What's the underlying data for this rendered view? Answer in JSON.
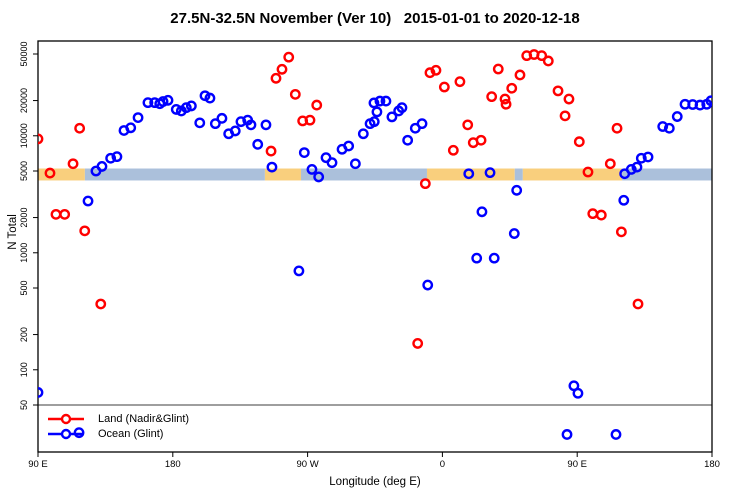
{
  "title": "27.5N-32.5N November (Ver 10)   2015-01-01 to 2020-12-18",
  "chart_data": {
    "type": "scatter",
    "title": "27.5N-32.5N November (Ver 10)   2015-01-01 to 2020-12-18",
    "xlabel": "Longitude (deg E)",
    "ylabel": "N Total",
    "x_axis": {
      "note": "longitude wraps eastward from 90E across dateline; continuous coords 90..540",
      "range": [
        90,
        540
      ],
      "ticks": [
        {
          "lon": 90,
          "label": "90 E"
        },
        {
          "lon": 180,
          "label": "180"
        },
        {
          "lon": 270,
          "label": "90 W"
        },
        {
          "lon": 360,
          "label": "0"
        },
        {
          "lon": 450,
          "label": "90 E"
        },
        {
          "lon": 540,
          "label": "180"
        }
      ]
    },
    "y_axis": {
      "scale": "log10",
      "range": [
        20,
        65000
      ],
      "ticks": [
        50,
        100,
        200,
        500,
        1000,
        2000,
        5000,
        10000,
        20000,
        50000
      ]
    },
    "grid": "off",
    "legend_position": "bottom-left",
    "reference_line_y": 50,
    "reference_line_color": "#7f7f7f",
    "surface_band": {
      "value_range": [
        4150,
        5250
      ],
      "land_color": "#f9cf7d",
      "ocean_color": "#abc0db",
      "segments": [
        {
          "from": 90,
          "to": 121.3,
          "surface": "land"
        },
        {
          "from": 121.3,
          "to": 241.5,
          "surface": "ocean"
        },
        {
          "from": 241.5,
          "to": 265.6,
          "surface": "land"
        },
        {
          "from": 265.6,
          "to": 349.7,
          "surface": "ocean"
        },
        {
          "from": 349.7,
          "to": 408.3,
          "surface": "land"
        },
        {
          "from": 408.3,
          "to": 413.7,
          "surface": "ocean"
        },
        {
          "from": 413.7,
          "to": 480.0,
          "surface": "land"
        },
        {
          "from": 480.0,
          "to": 540.0,
          "surface": "ocean"
        }
      ]
    },
    "series": [
      {
        "name": "Land (Nadir&Glint)",
        "color": "#ff0000",
        "marker": "open-circle",
        "points": [
          [
            90,
            9400
          ],
          [
            98,
            4800
          ],
          [
            102,
            2130
          ],
          [
            107.8,
            2130
          ],
          [
            113.4,
            5770
          ],
          [
            117.8,
            11600
          ],
          [
            121.2,
            1540
          ],
          [
            131.9,
            365
          ],
          [
            245.6,
            7400
          ],
          [
            248.9,
            31000
          ],
          [
            252.9,
            37000
          ],
          [
            257.4,
            47000
          ],
          [
            261.8,
            22600
          ],
          [
            266.7,
            13400
          ],
          [
            271.6,
            13600
          ],
          [
            276.1,
            18300
          ],
          [
            343.5,
            168
          ],
          [
            348.6,
            3900
          ],
          [
            351.7,
            34600
          ],
          [
            355.7,
            36300
          ],
          [
            361.3,
            26100
          ],
          [
            367.3,
            7520
          ],
          [
            371.7,
            29000
          ],
          [
            376.9,
            12400
          ],
          [
            380.6,
            8730
          ],
          [
            385.8,
            9160
          ],
          [
            392.9,
            21600
          ],
          [
            397.3,
            37200
          ],
          [
            401.8,
            20600
          ],
          [
            402.5,
            18600
          ],
          [
            406.3,
            25500
          ],
          [
            411.8,
            33100
          ],
          [
            416.3,
            48400
          ],
          [
            421.2,
            49500
          ],
          [
            426.3,
            48400
          ],
          [
            430.7,
            43600
          ],
          [
            437.2,
            24200
          ],
          [
            441.9,
            14800
          ],
          [
            444.5,
            20600
          ],
          [
            451.4,
            8900
          ],
          [
            457.2,
            4900
          ],
          [
            460.4,
            2160
          ],
          [
            466.1,
            2100
          ],
          [
            472.1,
            5770
          ],
          [
            476.6,
            11600
          ],
          [
            479.5,
            1510
          ],
          [
            490.6,
            365
          ]
        ]
      },
      {
        "name": "Ocean (Glint)",
        "color": "#0000ff",
        "marker": "open-circle",
        "points": [
          [
            90,
            64
          ],
          [
            117.4,
            29
          ],
          [
            123.4,
            2770
          ],
          [
            128.7,
            5000
          ],
          [
            132.7,
            5470
          ],
          [
            138.5,
            6430
          ],
          [
            142.7,
            6630
          ],
          [
            147.4,
            11100
          ],
          [
            151.9,
            11700
          ],
          [
            156.8,
            14300
          ],
          [
            163.4,
            19200
          ],
          [
            167.9,
            19200
          ],
          [
            171.3,
            18800
          ],
          [
            173.5,
            19600
          ],
          [
            176.8,
            20100
          ],
          [
            182.3,
            16800
          ],
          [
            185.7,
            16300
          ],
          [
            189,
            17400
          ],
          [
            192.4,
            18000
          ],
          [
            198,
            12900
          ],
          [
            201.5,
            22000
          ],
          [
            204.8,
            21000
          ],
          [
            208.4,
            12700
          ],
          [
            212.8,
            14100
          ],
          [
            217.3,
            10400
          ],
          [
            221.7,
            11000
          ],
          [
            225.5,
            13200
          ],
          [
            230,
            13600
          ],
          [
            232.2,
            12400
          ],
          [
            236.7,
            8450
          ],
          [
            242.2,
            12400
          ],
          [
            246.2,
            5400
          ],
          [
            264.2,
            700
          ],
          [
            267.8,
            7180
          ],
          [
            272.9,
            5160
          ],
          [
            277.4,
            4450
          ],
          [
            282.3,
            6500
          ],
          [
            286.3,
            5890
          ],
          [
            293,
            7670
          ],
          [
            297.4,
            8180
          ],
          [
            301.9,
            5770
          ],
          [
            307.2,
            10400
          ],
          [
            311.7,
            12700
          ],
          [
            314.5,
            13200
          ],
          [
            314.3,
            19100
          ],
          [
            316.3,
            16000
          ],
          [
            318.3,
            19800
          ],
          [
            322.3,
            19800
          ],
          [
            326.3,
            14500
          ],
          [
            330.8,
            16300
          ],
          [
            333,
            17400
          ],
          [
            336.8,
            9160
          ],
          [
            341.9,
            11600
          ],
          [
            346.4,
            12700
          ],
          [
            350.2,
            530
          ],
          [
            377.6,
            4740
          ],
          [
            382.9,
            900
          ],
          [
            386.4,
            2240
          ],
          [
            391.8,
            4840
          ],
          [
            394.6,
            900
          ],
          [
            408,
            1460
          ],
          [
            409.6,
            3420
          ],
          [
            443.2,
            28
          ],
          [
            447.8,
            73
          ],
          [
            450.5,
            63
          ],
          [
            475.9,
            28
          ],
          [
            481.1,
            2810
          ],
          [
            481.7,
            4740
          ],
          [
            486.1,
            5160
          ],
          [
            489.9,
            5400
          ],
          [
            492.8,
            6430
          ],
          [
            497.3,
            6590
          ],
          [
            507.1,
            12000
          ],
          [
            511.5,
            11600
          ],
          [
            516.8,
            14600
          ],
          [
            522,
            18600
          ],
          [
            527.1,
            18500
          ],
          [
            532,
            18300
          ],
          [
            536.5,
            18600
          ],
          [
            539.3,
            19900
          ]
        ]
      }
    ]
  }
}
